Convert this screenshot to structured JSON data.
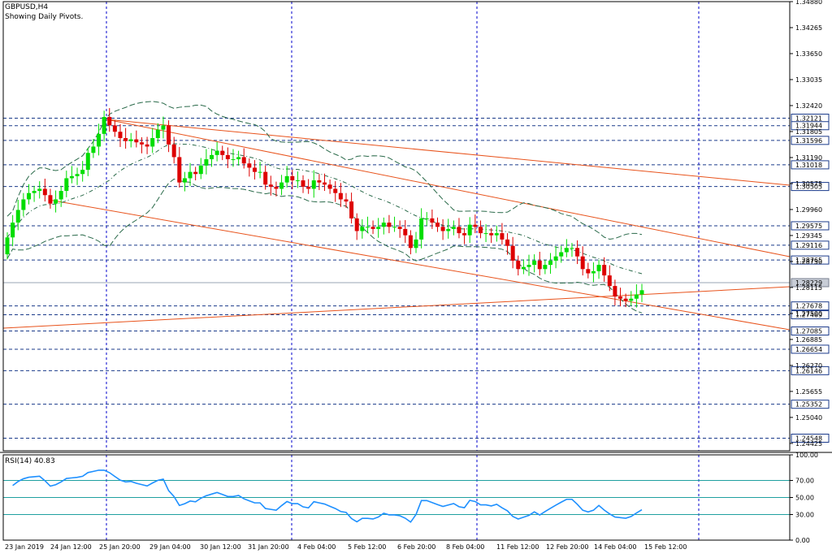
{
  "header": {
    "symbol": "GBPUSD,H4",
    "subtitle": "Showing Daily Pivots."
  },
  "rsi": {
    "label": "RSI(14) 40.83",
    "levels": [
      70,
      50,
      30
    ],
    "axis": [
      "100.00",
      "70.00",
      "50.00",
      "30.00",
      "0.00"
    ]
  },
  "colors": {
    "bull": "#00dd00",
    "bear": "#dd0000",
    "trend": "#e8531c",
    "grid": "#0000cc",
    "rsi": "#1e90ff",
    "level": "#1fa0a0"
  },
  "chart_data": {
    "type": "candlestick",
    "symbol": "GBPUSD",
    "timeframe": "H4",
    "ylim": [
      1.2425,
      1.3488
    ],
    "price_ticks": [
      "1.34880",
      "1.34265",
      "1.33650",
      "1.33035",
      "1.32420",
      "1.31805",
      "1.31190",
      "1.30575",
      "1.29960",
      "1.29345",
      "1.28730",
      "1.28115",
      "1.27500",
      "1.26885",
      "1.26270",
      "1.25655",
      "1.25040",
      "1.24425"
    ],
    "pivot_levels": [
      "1.32121",
      "1.31944",
      "1.31596",
      "1.31018",
      "1.30505",
      "1.29575",
      "1.29116",
      "1.28765",
      "1.27678",
      "1.27469",
      "1.27085",
      "1.26654",
      "1.26146",
      "1.25352",
      "1.24548"
    ],
    "current_price": "1.28229",
    "x_labels": [
      "23 Jan 2019",
      "24 Jan 12:00",
      "25 Jan 20:00",
      "29 Jan 04:00",
      "30 Jan 12:00",
      "31 Jan 20:00",
      "4 Feb 04:00",
      "5 Feb 12:00",
      "6 Feb 20:00",
      "8 Feb 04:00",
      "11 Feb 12:00",
      "12 Feb 20:00",
      "14 Feb 04:00",
      "15 Feb 12:00"
    ],
    "vertical_separators": [
      "25 Jan",
      "4 Feb",
      "11 Feb",
      "15 Feb"
    ],
    "closes": [
      1.293,
      1.2965,
      1.2995,
      1.302,
      1.3035,
      1.304,
      1.3045,
      1.303,
      1.301,
      1.302,
      1.304,
      1.307,
      1.3075,
      1.308,
      1.309,
      1.313,
      1.3145,
      1.3175,
      1.3215,
      1.3195,
      1.318,
      1.3165,
      1.3158,
      1.3162,
      1.3155,
      1.315,
      1.3145,
      1.3165,
      1.3185,
      1.3195,
      1.315,
      1.312,
      1.306,
      1.307,
      1.3085,
      1.308,
      1.31,
      1.3115,
      1.3125,
      1.3135,
      1.3125,
      1.3115,
      1.3115,
      1.312,
      1.3105,
      1.3095,
      1.3085,
      1.3085,
      1.3055,
      1.305,
      1.3045,
      1.306,
      1.3075,
      1.3065,
      1.3065,
      1.305,
      1.3045,
      1.3065,
      1.306,
      1.3055,
      1.3045,
      1.3035,
      1.302,
      1.3015,
      1.2975,
      1.2945,
      1.2955,
      1.2955,
      1.295,
      1.2955,
      1.2965,
      1.2955,
      1.2955,
      1.295,
      1.2935,
      1.2905,
      1.2925,
      1.2975,
      1.2975,
      1.2965,
      1.2955,
      1.2945,
      1.295,
      1.2955,
      1.294,
      1.2935,
      1.296,
      1.2955,
      1.294,
      1.294,
      1.2935,
      1.294,
      1.2925,
      1.291,
      1.2875,
      1.2855,
      1.286,
      1.2865,
      1.2875,
      1.2855,
      1.2865,
      1.2875,
      1.2885,
      1.2895,
      1.2905,
      1.2905,
      1.2885,
      1.2855,
      1.2845,
      1.285,
      1.2865,
      1.284,
      1.2815,
      1.279,
      1.2785,
      1.278,
      1.2785,
      1.2795,
      1.2805
    ]
  }
}
